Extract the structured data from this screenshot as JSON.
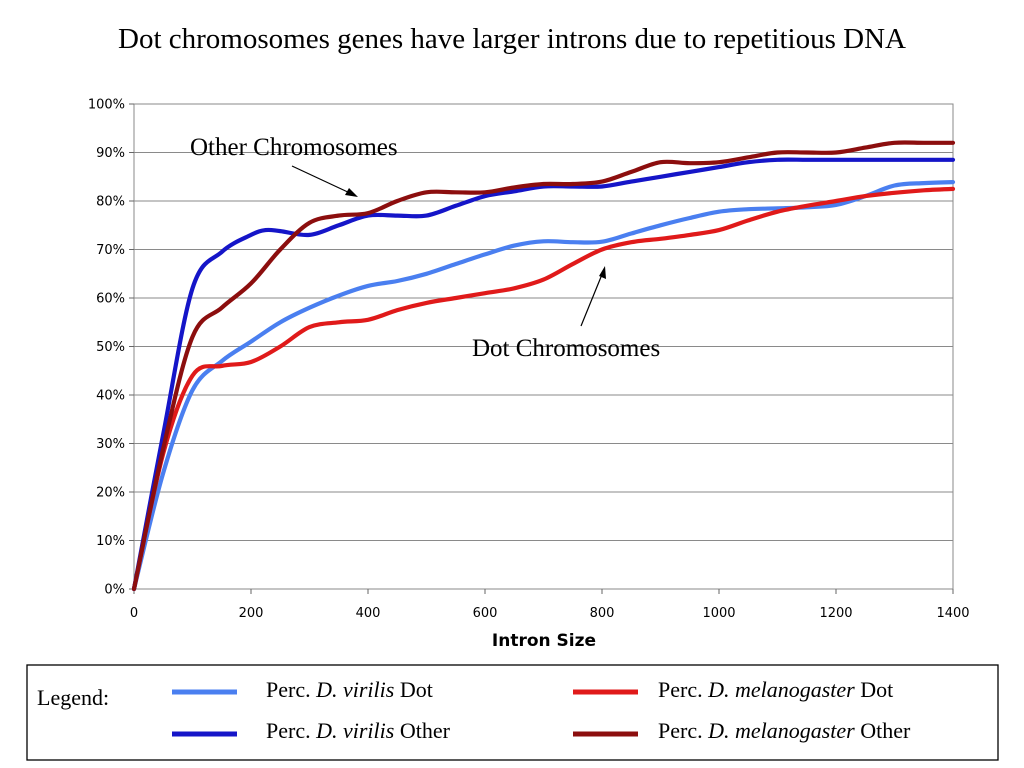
{
  "slide": {
    "title": "Dot chromosomes genes have larger introns due to repetitious DNA"
  },
  "annotations": [
    {
      "text": "Other Chromosomes",
      "points_to": "Perc. D. melanogaster Other"
    },
    {
      "text": "Dot Chromosomes",
      "points_to": "Perc. D. melanogaster Dot"
    }
  ],
  "legend": {
    "label": "Legend:",
    "entries": [
      {
        "prefix": "Perc. ",
        "species": "D. virilis",
        "suffix": " Dot",
        "color": "#4a7ff0"
      },
      {
        "prefix": "Perc. ",
        "species": "D. melanogaster",
        "suffix": " Dot",
        "color": "#e01a1a"
      },
      {
        "prefix": "Perc. ",
        "species": "D. virilis",
        "suffix": " Other",
        "color": "#1515c8"
      },
      {
        "prefix": "Perc. ",
        "species": "D. melanogaster",
        "suffix": " Other",
        "color": "#8c0e0e"
      }
    ]
  },
  "chart_data": {
    "type": "line",
    "title": "",
    "xlabel": "Intron Size",
    "ylabel": "",
    "xlim": [
      0,
      1400
    ],
    "ylim": [
      0,
      100
    ],
    "x_ticks": [
      0,
      200,
      400,
      600,
      800,
      1000,
      1200,
      1400
    ],
    "y_ticks": [
      0,
      10,
      20,
      30,
      40,
      50,
      60,
      70,
      80,
      90,
      100
    ],
    "y_tick_labels": [
      "0%",
      "10%",
      "20%",
      "30%",
      "40%",
      "50%",
      "60%",
      "70%",
      "80%",
      "90%",
      "100%"
    ],
    "grid": "horizontal",
    "legend_position": "bottom",
    "series": [
      {
        "name": "Perc. D. virilis Dot",
        "color": "#4a7ff0",
        "x": [
          0,
          50,
          100,
          150,
          200,
          250,
          300,
          350,
          400,
          450,
          500,
          550,
          600,
          650,
          700,
          750,
          800,
          850,
          900,
          950,
          1000,
          1050,
          1100,
          1150,
          1200,
          1250,
          1300,
          1350,
          1400
        ],
        "y": [
          0,
          24,
          41,
          47,
          51,
          55,
          58,
          60.5,
          62.5,
          63.5,
          65,
          67,
          69,
          70.8,
          71.7,
          71.5,
          71.6,
          73.3,
          75,
          76.5,
          77.8,
          78.3,
          78.5,
          78.7,
          79.2,
          81,
          83.2,
          83.7,
          83.9
        ]
      },
      {
        "name": "Perc. D. melanogaster Dot",
        "color": "#e01a1a",
        "x": [
          0,
          50,
          100,
          150,
          200,
          250,
          300,
          350,
          400,
          450,
          500,
          550,
          600,
          650,
          700,
          750,
          800,
          850,
          900,
          950,
          1000,
          1050,
          1100,
          1150,
          1200,
          1250,
          1300,
          1350,
          1400
        ],
        "y": [
          0,
          28,
          44,
          46,
          46.8,
          50,
          54,
          55,
          55.5,
          57.5,
          59,
          60,
          61,
          62,
          63.8,
          67,
          70,
          71.5,
          72.2,
          73,
          74,
          76,
          77.8,
          79,
          80,
          81,
          81.7,
          82.2,
          82.5
        ]
      },
      {
        "name": "Perc. D. virilis Other",
        "color": "#1515c8",
        "x": [
          0,
          50,
          100,
          150,
          200,
          225,
          250,
          300,
          350,
          400,
          450,
          500,
          550,
          600,
          650,
          700,
          750,
          800,
          850,
          900,
          950,
          1000,
          1050,
          1100,
          1150,
          1200,
          1250,
          1300,
          1350,
          1400
        ],
        "y": [
          0,
          32,
          62,
          69.5,
          73,
          74,
          73.8,
          73,
          75,
          77,
          77,
          77,
          79,
          81,
          82,
          83,
          83,
          83,
          84,
          85,
          86,
          87,
          88,
          88.5,
          88.5,
          88.5,
          88.5,
          88.5,
          88.5,
          88.5
        ]
      },
      {
        "name": "Perc. D. melanogaster Other",
        "color": "#8c0e0e",
        "x": [
          0,
          50,
          100,
          150,
          200,
          250,
          300,
          350,
          400,
          450,
          500,
          550,
          600,
          650,
          700,
          750,
          800,
          850,
          900,
          950,
          1000,
          1050,
          1100,
          1150,
          1200,
          1250,
          1300,
          1350,
          1400
        ],
        "y": [
          0,
          29,
          52,
          58,
          63,
          70,
          75.5,
          77,
          77.5,
          80,
          81.8,
          81.8,
          81.8,
          82.8,
          83.5,
          83.5,
          84,
          86,
          88,
          87.8,
          88,
          89,
          90,
          90,
          90,
          91,
          92,
          92,
          92
        ]
      }
    ]
  }
}
